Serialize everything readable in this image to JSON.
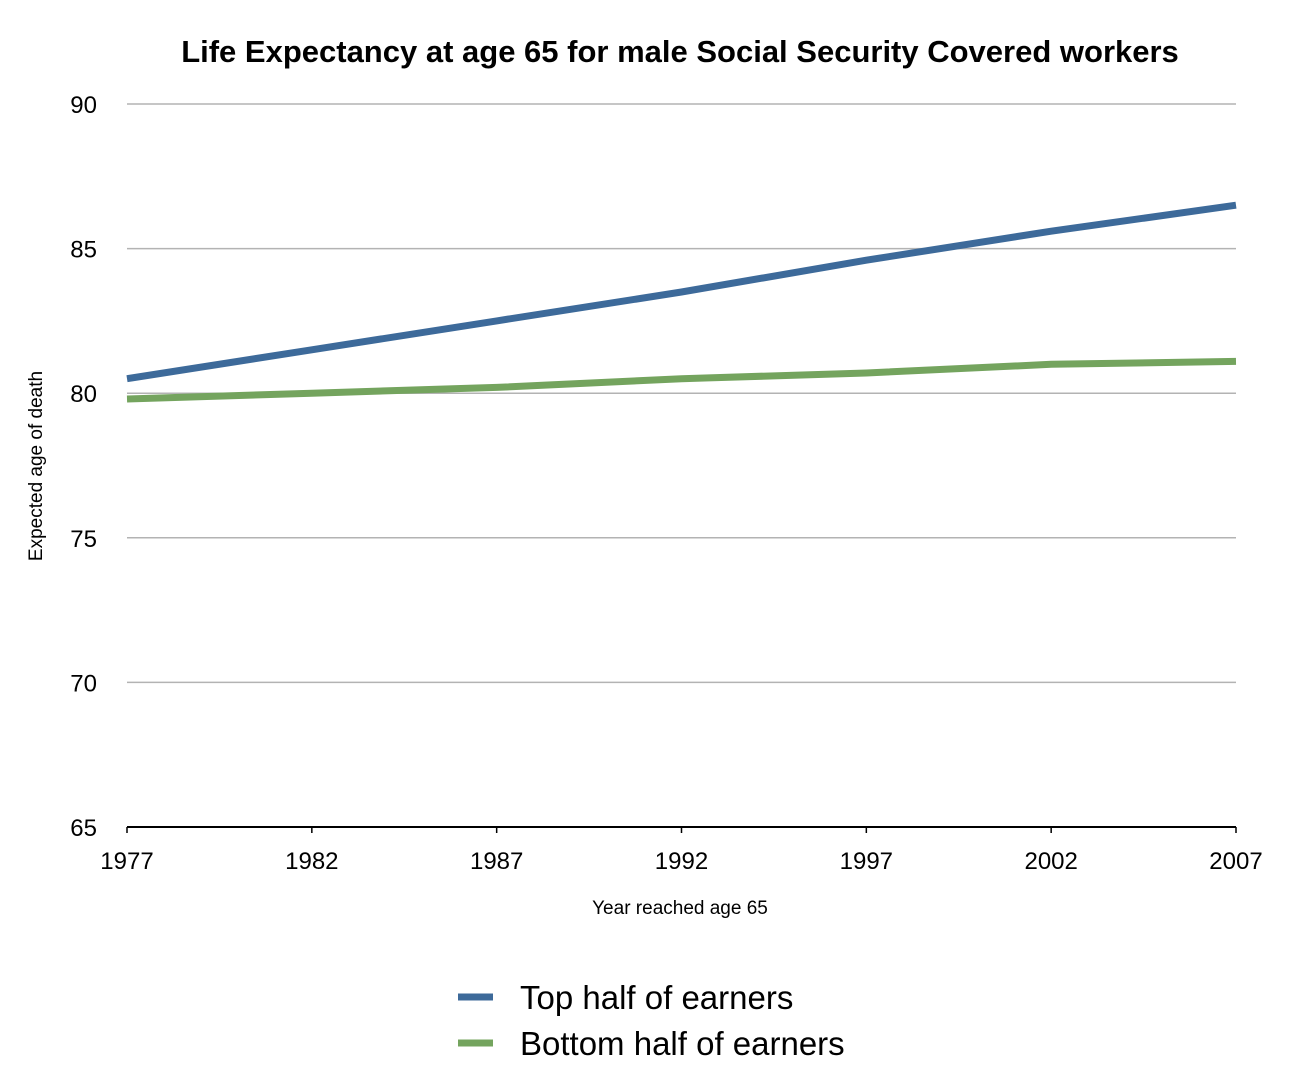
{
  "chart_data": {
    "type": "line",
    "title": "Life Expectancy at age 65 for male Social Security Covered workers",
    "xlabel": "Year reached age 65",
    "ylabel": "Expected age of death",
    "x": [
      1977,
      1982,
      1987,
      1992,
      1997,
      2002,
      2007
    ],
    "x_tick_labels": [
      "1977",
      "1982",
      "1987",
      "1992",
      "1997",
      "2002",
      "2007"
    ],
    "y_tick_labels": [
      "90",
      "85",
      "80",
      "75",
      "70",
      "65"
    ],
    "y_ticks": [
      90,
      85,
      80,
      75,
      70,
      65
    ],
    "xlim": [
      1977,
      2007
    ],
    "ylim": [
      65,
      90
    ],
    "grid": true,
    "legend_position": "bottom-center",
    "series": [
      {
        "name": "Top half of earners",
        "color": "#3d6a9a",
        "values": [
          80.5,
          81.5,
          82.5,
          83.5,
          84.6,
          85.6,
          86.5
        ]
      },
      {
        "name": "Bottom half of earners",
        "color": "#74a45e",
        "values": [
          79.8,
          80.0,
          80.2,
          80.5,
          80.7,
          81.0,
          81.1
        ]
      }
    ]
  }
}
